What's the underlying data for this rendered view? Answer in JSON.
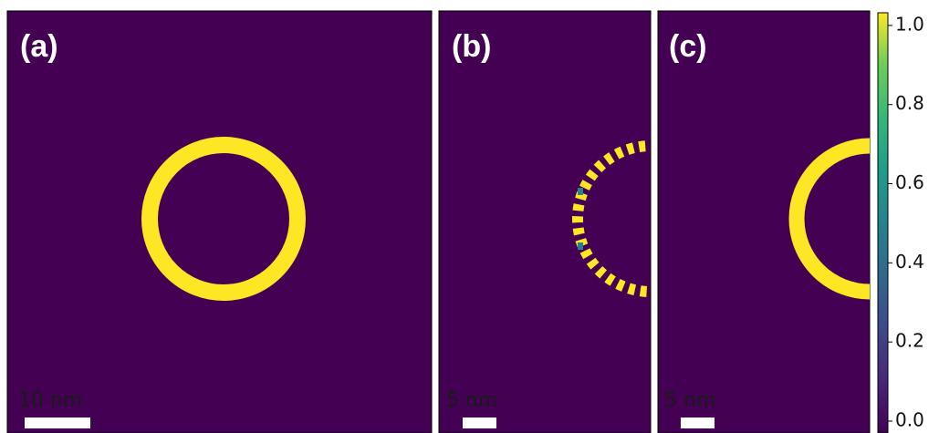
{
  "panels": [
    {
      "label": "(a)",
      "scale_bar": "10 nm"
    },
    {
      "label": "(b)",
      "scale_bar": "5 nm"
    },
    {
      "label": "(c)",
      "scale_bar": "5 nm"
    }
  ],
  "colorbar": {
    "ylim": [
      -0.03,
      1.032
    ],
    "yticks": [
      {
        "value": 0,
        "label": "0.0"
      },
      0.2,
      0.4,
      0.6,
      0.8,
      {
        "value": 1,
        "label": "1.0"
      }
    ]
  }
}
